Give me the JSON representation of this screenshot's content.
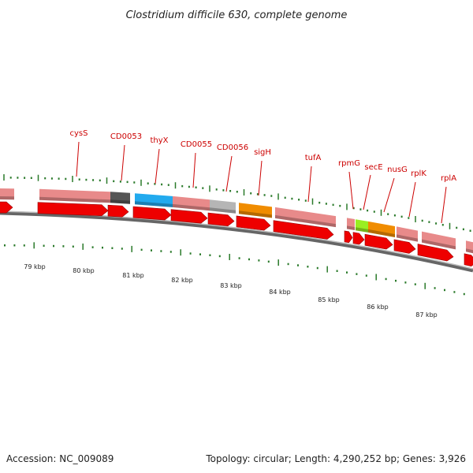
{
  "title": "Clostridium difficile 630, complete genome",
  "footer": {
    "accession": "Accession: NC_009089",
    "summary": "Topology: circular; Length: 4,290,252 bp; Genes: 3,926"
  },
  "colors": {
    "label": "#cc0000",
    "gene_pink": "#e88a8a",
    "gene_pink_dark": "#b05555",
    "cds_red": "#ee0000",
    "cds_red_dark": "#990000",
    "dark_gray": "#555555",
    "light_gray": "#b5b5b5",
    "blue": "#22aaee",
    "orange": "#f08c00",
    "lime": "#99ee22",
    "tick": "#2a7a2a",
    "backbone": "#888888"
  },
  "kbp_labels": [
    "79 kbp",
    "80 kbp",
    "81 kbp",
    "82 kbp",
    "83 kbp",
    "84 kbp",
    "85 kbp",
    "86 kbp",
    "87 kbp"
  ],
  "gene_labels": [
    "cysS",
    "CD0053",
    "thyX",
    "CD0055",
    "CD0056",
    "sigH",
    "tufA",
    "rpmG",
    "secE",
    "nusG",
    "rplK",
    "rplA"
  ]
}
